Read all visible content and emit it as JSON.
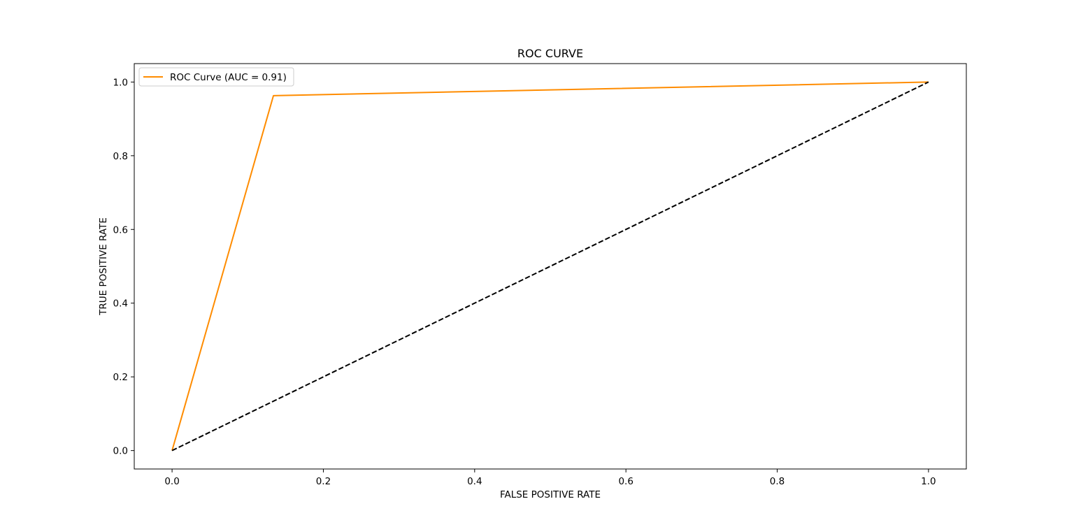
{
  "chart_data": {
    "type": "line",
    "title": "ROC CURVE",
    "xlabel": "FALSE POSITIVE RATE",
    "ylabel": "TRUE POSITIVE RATE",
    "xlim": [
      -0.05,
      1.05
    ],
    "ylim": [
      -0.05,
      1.05
    ],
    "xticks": [
      0.0,
      0.2,
      0.4,
      0.6,
      0.8,
      1.0
    ],
    "xtick_labels": [
      "0.0",
      "0.2",
      "0.4",
      "0.6",
      "0.8",
      "1.0"
    ],
    "yticks": [
      0.0,
      0.2,
      0.4,
      0.6,
      0.8,
      1.0
    ],
    "ytick_labels": [
      "0.0",
      "0.2",
      "0.4",
      "0.6",
      "0.8",
      "1.0"
    ],
    "grid": false,
    "legend_position": "upper left",
    "series": [
      {
        "name": "ROC Curve (AUC = 0.91)",
        "x": [
          0.0,
          0.134,
          1.0
        ],
        "y": [
          0.0,
          0.963,
          1.0
        ],
        "color": "#ff8c00",
        "linestyle": "solid",
        "in_legend": true
      },
      {
        "x": [
          0.0,
          1.0
        ],
        "y": [
          0.0,
          1.0
        ],
        "color": "#000000",
        "linestyle": "dashed",
        "in_legend": false
      }
    ]
  }
}
